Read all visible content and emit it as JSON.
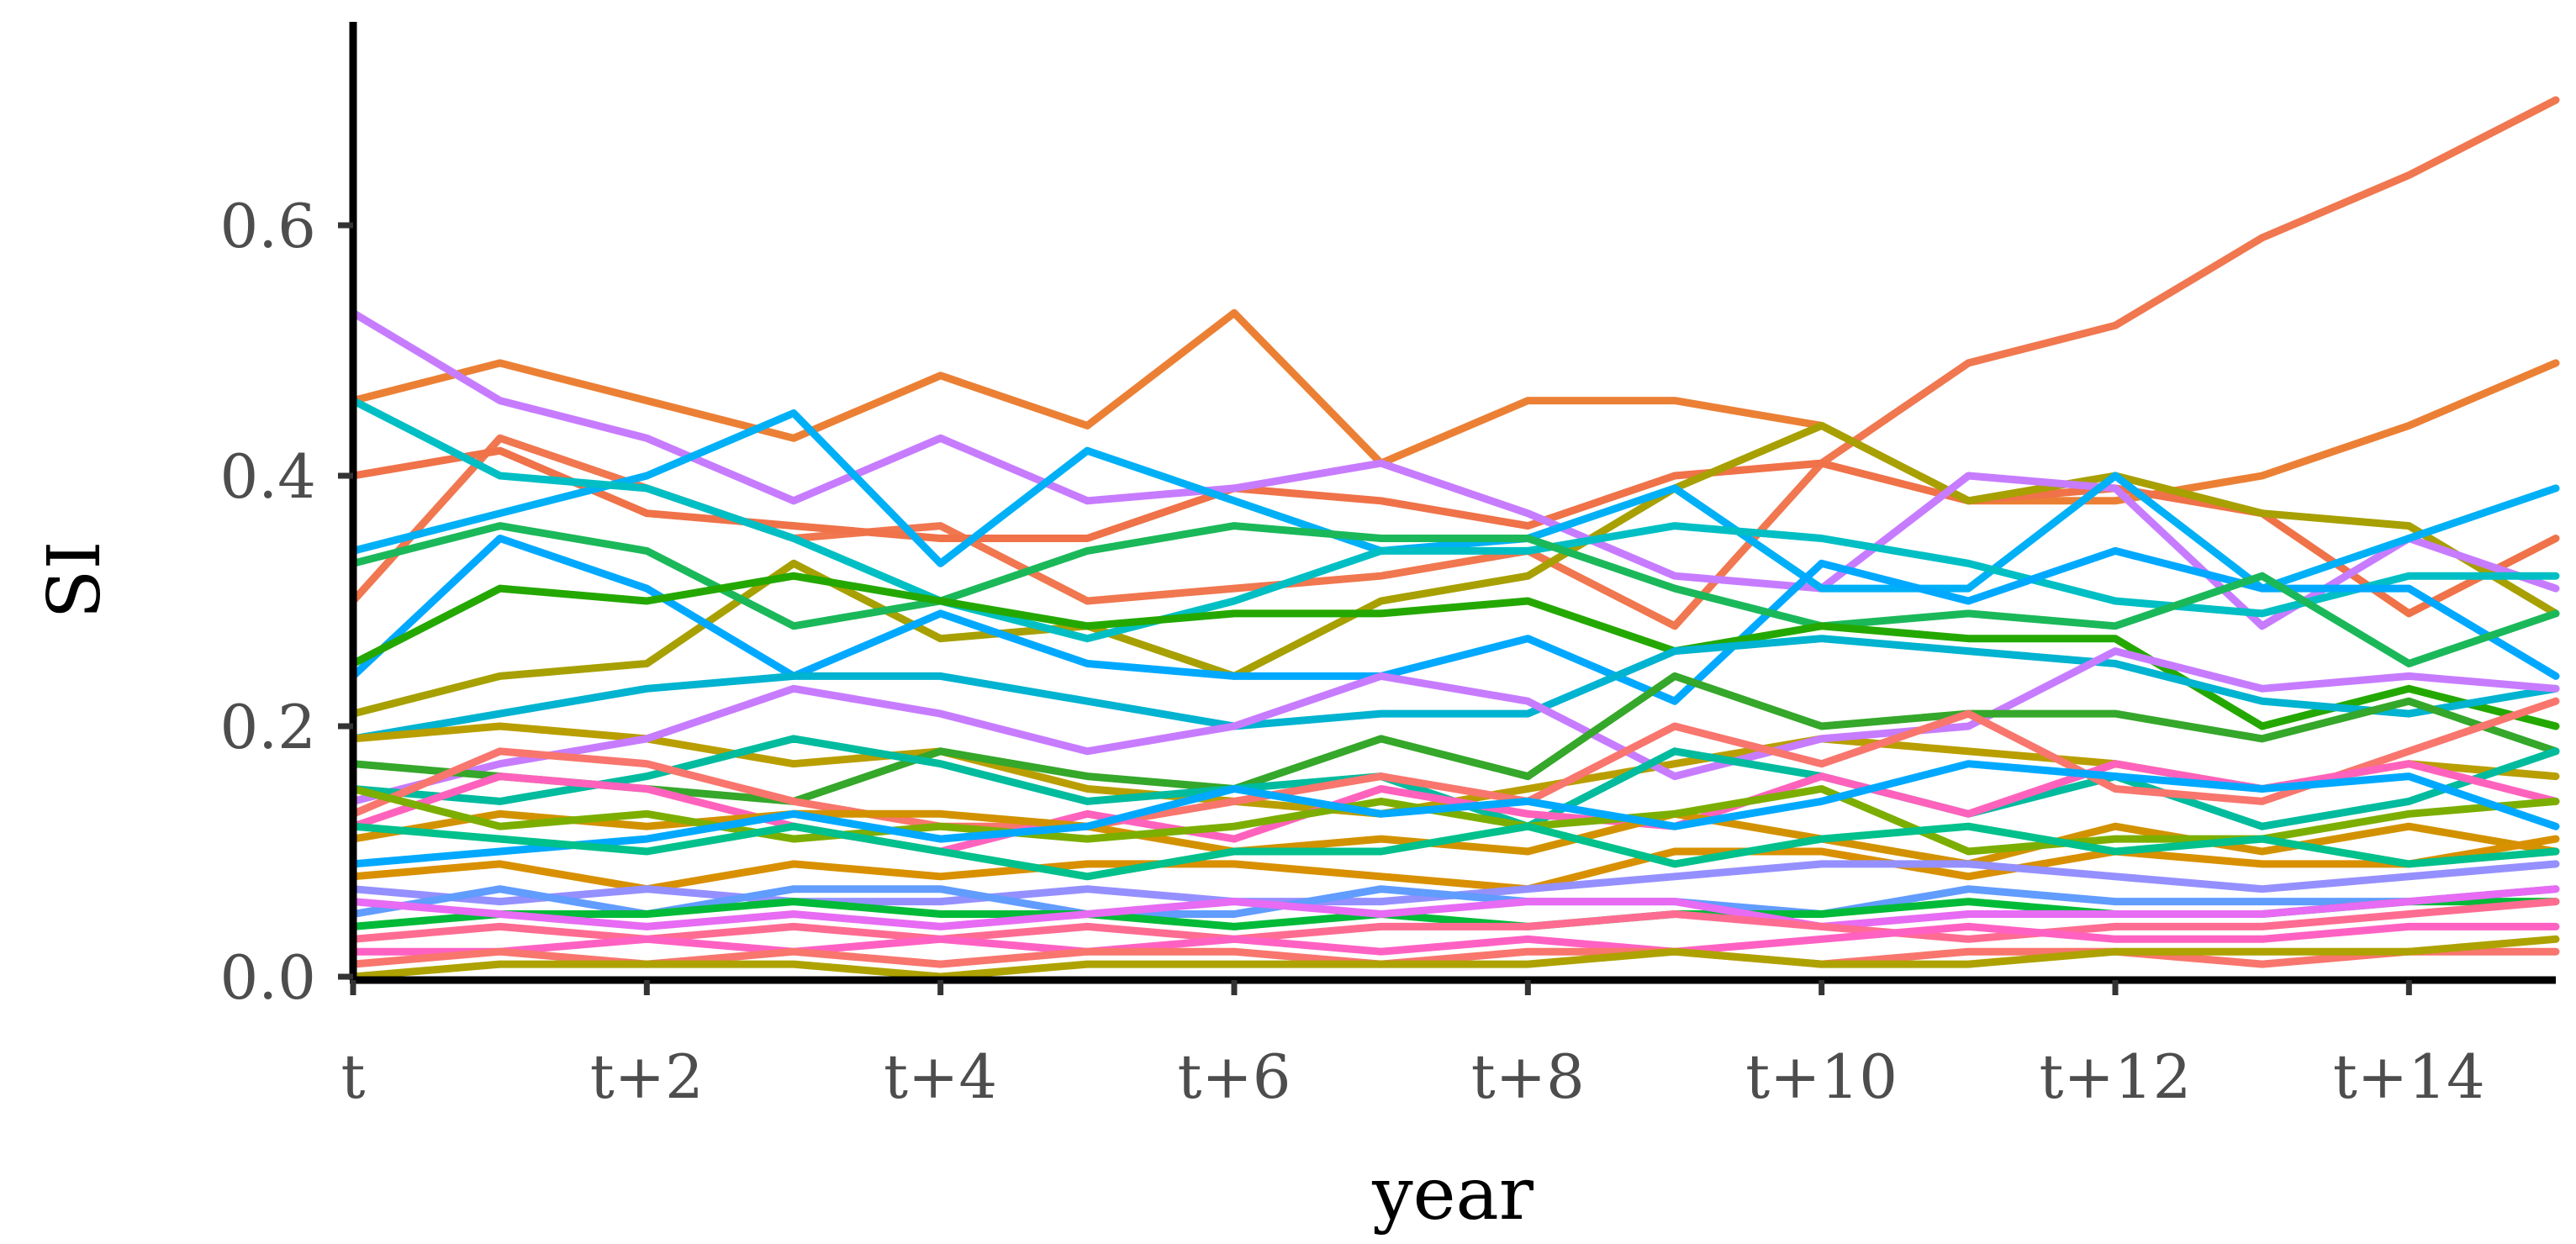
{
  "chart_data": {
    "type": "line",
    "xlabel": "year",
    "ylabel": "SI",
    "title": "",
    "x": [
      "t",
      "t+1",
      "t+2",
      "t+3",
      "t+4",
      "t+5",
      "t+6",
      "t+7",
      "t+8",
      "t+9",
      "t+10",
      "t+11",
      "t+12",
      "t+13",
      "t+14",
      "t+15"
    ],
    "x_tick_labels": [
      "t",
      "t+2",
      "t+4",
      "t+6",
      "t+8",
      "t+10",
      "t+12",
      "t+14"
    ],
    "y_tick_labels": [
      "0.0",
      "0.2",
      "0.4",
      "0.6"
    ],
    "y_ticks": [
      0.0,
      0.2,
      0.4,
      0.6
    ],
    "ylim": [
      0.0,
      0.76
    ],
    "xlim": [
      0,
      15
    ],
    "grid": false,
    "legend": "none",
    "series": [
      {
        "color": "#F0774F",
        "values": [
          0.3,
          0.43,
          0.39,
          0.35,
          0.36,
          0.3,
          0.31,
          0.32,
          0.34,
          0.28,
          0.41,
          0.49,
          0.52,
          0.59,
          0.64,
          0.7
        ]
      },
      {
        "color": "#EB8035",
        "values": [
          0.46,
          0.49,
          0.46,
          0.43,
          0.48,
          0.44,
          0.53,
          0.41,
          0.46,
          0.46,
          0.44,
          0.38,
          0.38,
          0.4,
          0.44,
          0.49
        ]
      },
      {
        "color": "#EF7249",
        "values": [
          0.4,
          0.42,
          0.37,
          0.36,
          0.35,
          0.35,
          0.39,
          0.38,
          0.36,
          0.4,
          0.41,
          0.38,
          0.39,
          0.37,
          0.29,
          0.35
        ]
      },
      {
        "color": "#A7A000",
        "values": [
          0.21,
          0.24,
          0.25,
          0.33,
          0.27,
          0.28,
          0.24,
          0.3,
          0.32,
          0.39,
          0.44,
          0.38,
          0.4,
          0.37,
          0.36,
          0.29
        ]
      },
      {
        "color": "#C77CFF",
        "values": [
          0.53,
          0.46,
          0.43,
          0.38,
          0.43,
          0.38,
          0.39,
          0.41,
          0.37,
          0.32,
          0.31,
          0.4,
          0.39,
          0.28,
          0.35,
          0.31
        ]
      },
      {
        "color": "#00B0F6",
        "values": [
          0.34,
          0.37,
          0.4,
          0.45,
          0.33,
          0.42,
          0.38,
          0.34,
          0.35,
          0.39,
          0.31,
          0.31,
          0.4,
          0.31,
          0.35,
          0.39
        ]
      },
      {
        "color": "#00BFC4",
        "values": [
          0.46,
          0.4,
          0.39,
          0.35,
          0.3,
          0.27,
          0.3,
          0.34,
          0.34,
          0.36,
          0.35,
          0.33,
          0.3,
          0.29,
          0.32,
          0.32
        ]
      },
      {
        "color": "#00A9FF",
        "values": [
          0.24,
          0.35,
          0.31,
          0.24,
          0.29,
          0.25,
          0.24,
          0.24,
          0.27,
          0.22,
          0.33,
          0.3,
          0.34,
          0.31,
          0.31,
          0.24
        ]
      },
      {
        "color": "#1BB85A",
        "values": [
          0.33,
          0.36,
          0.34,
          0.28,
          0.3,
          0.34,
          0.36,
          0.35,
          0.35,
          0.31,
          0.28,
          0.29,
          0.28,
          0.32,
          0.25,
          0.29
        ]
      },
      {
        "color": "#24A800",
        "values": [
          0.25,
          0.31,
          0.3,
          0.32,
          0.3,
          0.28,
          0.29,
          0.29,
          0.3,
          0.26,
          0.28,
          0.27,
          0.27,
          0.2,
          0.23,
          0.2
        ]
      },
      {
        "color": "#00B3D0",
        "values": [
          0.19,
          0.21,
          0.23,
          0.24,
          0.24,
          0.22,
          0.2,
          0.21,
          0.21,
          0.26,
          0.27,
          0.26,
          0.25,
          0.22,
          0.21,
          0.23
        ]
      },
      {
        "color": "#B99E00",
        "values": [
          0.19,
          0.2,
          0.19,
          0.17,
          0.18,
          0.15,
          0.14,
          0.13,
          0.15,
          0.17,
          0.19,
          0.18,
          0.17,
          0.15,
          0.17,
          0.16
        ]
      },
      {
        "color": "#C77CFF",
        "values": [
          0.14,
          0.17,
          0.19,
          0.23,
          0.21,
          0.18,
          0.2,
          0.24,
          0.22,
          0.16,
          0.19,
          0.2,
          0.26,
          0.23,
          0.24,
          0.23
        ]
      },
      {
        "color": "#35A72A",
        "values": [
          0.17,
          0.16,
          0.15,
          0.14,
          0.18,
          0.16,
          0.15,
          0.19,
          0.16,
          0.24,
          0.2,
          0.21,
          0.21,
          0.19,
          0.22,
          0.18
        ]
      },
      {
        "color": "#00BB9E",
        "values": [
          0.15,
          0.14,
          0.16,
          0.19,
          0.17,
          0.14,
          0.15,
          0.16,
          0.12,
          0.18,
          0.16,
          0.13,
          0.16,
          0.12,
          0.14,
          0.18
        ]
      },
      {
        "color": "#F8766D",
        "values": [
          0.13,
          0.18,
          0.17,
          0.14,
          0.12,
          0.12,
          0.14,
          0.16,
          0.14,
          0.2,
          0.17,
          0.21,
          0.15,
          0.14,
          0.18,
          0.22
        ]
      },
      {
        "color": "#FF62BC",
        "values": [
          0.12,
          0.16,
          0.15,
          0.12,
          0.1,
          0.13,
          0.11,
          0.15,
          0.13,
          0.12,
          0.16,
          0.13,
          0.17,
          0.15,
          0.17,
          0.14
        ]
      },
      {
        "color": "#D29200",
        "values": [
          0.11,
          0.13,
          0.12,
          0.13,
          0.13,
          0.12,
          0.1,
          0.11,
          0.1,
          0.13,
          0.11,
          0.09,
          0.12,
          0.1,
          0.12,
          0.1
        ]
      },
      {
        "color": "#7CAE00",
        "values": [
          0.15,
          0.12,
          0.13,
          0.11,
          0.12,
          0.11,
          0.12,
          0.14,
          0.12,
          0.13,
          0.15,
          0.1,
          0.11,
          0.11,
          0.13,
          0.14
        ]
      },
      {
        "color": "#00A9FF",
        "values": [
          0.09,
          0.1,
          0.11,
          0.13,
          0.11,
          0.12,
          0.15,
          0.13,
          0.14,
          0.12,
          0.14,
          0.17,
          0.16,
          0.15,
          0.16,
          0.12
        ]
      },
      {
        "color": "#D89000",
        "values": [
          0.08,
          0.09,
          0.07,
          0.09,
          0.08,
          0.09,
          0.09,
          0.08,
          0.07,
          0.1,
          0.1,
          0.08,
          0.1,
          0.09,
          0.09,
          0.11
        ]
      },
      {
        "color": "#00C08B",
        "values": [
          0.12,
          0.11,
          0.1,
          0.12,
          0.1,
          0.08,
          0.1,
          0.1,
          0.12,
          0.09,
          0.11,
          0.12,
          0.1,
          0.11,
          0.09,
          0.1
        ]
      },
      {
        "color": "#9590FF",
        "values": [
          0.07,
          0.06,
          0.07,
          0.06,
          0.06,
          0.07,
          0.06,
          0.06,
          0.07,
          0.08,
          0.09,
          0.09,
          0.08,
          0.07,
          0.08,
          0.09
        ]
      },
      {
        "color": "#619CFF",
        "values": [
          0.05,
          0.07,
          0.05,
          0.07,
          0.07,
          0.05,
          0.05,
          0.07,
          0.06,
          0.06,
          0.05,
          0.07,
          0.06,
          0.06,
          0.06,
          0.07
        ]
      },
      {
        "color": "#00BA38",
        "values": [
          0.04,
          0.05,
          0.05,
          0.06,
          0.05,
          0.05,
          0.04,
          0.05,
          0.04,
          0.05,
          0.05,
          0.06,
          0.05,
          0.05,
          0.06,
          0.06
        ]
      },
      {
        "color": "#E76BF3",
        "values": [
          0.06,
          0.05,
          0.04,
          0.05,
          0.04,
          0.05,
          0.06,
          0.05,
          0.06,
          0.06,
          0.04,
          0.05,
          0.05,
          0.05,
          0.06,
          0.07
        ]
      },
      {
        "color": "#FF6C91",
        "values": [
          0.03,
          0.04,
          0.03,
          0.04,
          0.03,
          0.04,
          0.03,
          0.04,
          0.04,
          0.05,
          0.04,
          0.03,
          0.04,
          0.04,
          0.05,
          0.06
        ]
      },
      {
        "color": "#FF61C3",
        "values": [
          0.02,
          0.02,
          0.03,
          0.02,
          0.03,
          0.02,
          0.03,
          0.02,
          0.03,
          0.02,
          0.03,
          0.04,
          0.03,
          0.03,
          0.04,
          0.04
        ]
      },
      {
        "color": "#F8766D",
        "values": [
          0.01,
          0.02,
          0.01,
          0.02,
          0.01,
          0.02,
          0.02,
          0.01,
          0.02,
          0.02,
          0.01,
          0.02,
          0.02,
          0.01,
          0.02,
          0.02
        ]
      },
      {
        "color": "#AEA200",
        "values": [
          0.0,
          0.01,
          0.01,
          0.01,
          0.0,
          0.01,
          0.01,
          0.01,
          0.01,
          0.02,
          0.01,
          0.01,
          0.02,
          0.02,
          0.02,
          0.03
        ]
      }
    ]
  }
}
